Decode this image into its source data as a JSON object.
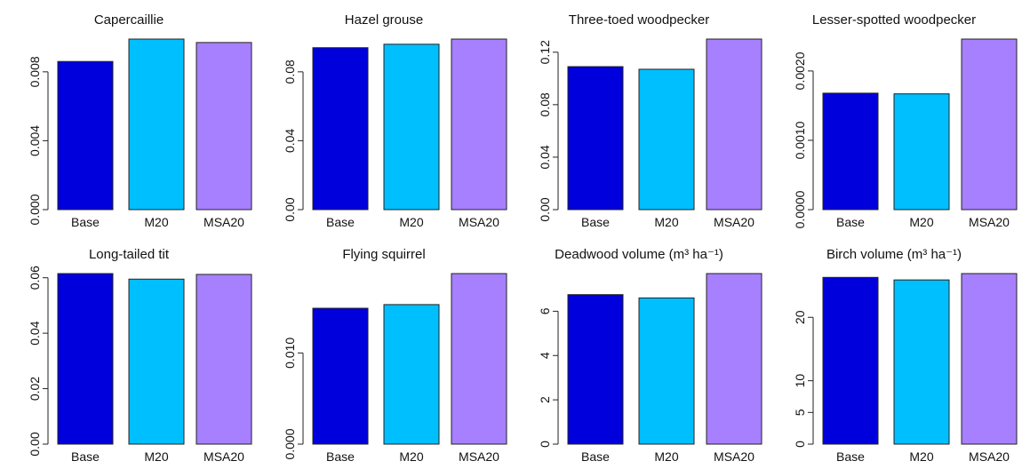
{
  "colors": {
    "Base": "#0000dd",
    "M20": "#00bfff",
    "MSA20": "#a780ff",
    "axis": "#222222"
  },
  "chart_data": [
    {
      "type": "bar",
      "title": "Capercaillie",
      "categories": [
        "Base",
        "M20",
        "MSA20"
      ],
      "values": [
        0.0086,
        0.0099,
        0.0097
      ],
      "ylim": [
        0,
        0.0099
      ],
      "yticks": [
        0.0,
        0.004,
        0.008
      ],
      "ytick_labels": [
        "0.000",
        "0.004",
        "0.008"
      ]
    },
    {
      "type": "bar",
      "title": "Hazel grouse",
      "categories": [
        "Base",
        "M20",
        "MSA20"
      ],
      "values": [
        0.094,
        0.096,
        0.099
      ],
      "ylim": [
        0,
        0.099
      ],
      "yticks": [
        0.0,
        0.04,
        0.08
      ],
      "ytick_labels": [
        "0.00",
        "0.04",
        "0.08"
      ]
    },
    {
      "type": "bar",
      "title": "Three-toed woodpecker",
      "categories": [
        "Base",
        "M20",
        "MSA20"
      ],
      "values": [
        0.109,
        0.107,
        0.13
      ],
      "ylim": [
        0,
        0.13
      ],
      "yticks": [
        0.0,
        0.04,
        0.08,
        0.12
      ],
      "ytick_labels": [
        "0.00",
        "0.04",
        "0.08",
        "0.12"
      ]
    },
    {
      "type": "bar",
      "title": "Lesser-spotted woodpecker",
      "categories": [
        "Base",
        "M20",
        "MSA20"
      ],
      "values": [
        0.00168,
        0.00167,
        0.00246
      ],
      "ylim": [
        0,
        0.00246
      ],
      "yticks": [
        0.0,
        0.001,
        0.002
      ],
      "ytick_labels": [
        "0.0000",
        "0.0010",
        "0.0020"
      ]
    },
    {
      "type": "bar",
      "title": "Long-tailed tit",
      "categories": [
        "Base",
        "M20",
        "MSA20"
      ],
      "values": [
        0.0615,
        0.0595,
        0.0612
      ],
      "ylim": [
        0,
        0.0615
      ],
      "yticks": [
        0.0,
        0.02,
        0.04,
        0.06
      ],
      "ytick_labels": [
        "0.00",
        "0.02",
        "0.04",
        "0.06"
      ]
    },
    {
      "type": "bar",
      "title": "Flying squirrel",
      "categories": [
        "Base",
        "M20",
        "MSA20"
      ],
      "values": [
        0.0149,
        0.0153,
        0.0187
      ],
      "ylim": [
        0,
        0.0187
      ],
      "yticks": [
        0.0,
        0.01
      ],
      "ytick_labels": [
        "0.000",
        "0.010"
      ]
    },
    {
      "type": "bar",
      "title": "Deadwood volume (m³ ha⁻¹)",
      "categories": [
        "Base",
        "M20",
        "MSA20"
      ],
      "values": [
        6.75,
        6.6,
        7.7
      ],
      "ylim": [
        0,
        7.7
      ],
      "yticks": [
        0,
        2,
        4,
        6
      ],
      "ytick_labels": [
        "0",
        "2",
        "4",
        "6"
      ]
    },
    {
      "type": "bar",
      "title": "Birch volume (m³ ha⁻¹)",
      "categories": [
        "Base",
        "M20",
        "MSA20"
      ],
      "values": [
        26.3,
        25.9,
        26.9
      ],
      "ylim": [
        0,
        26.9
      ],
      "yticks": [
        0,
        5,
        10,
        20
      ],
      "ytick_labels": [
        "0",
        "5",
        "10",
        "20"
      ]
    }
  ]
}
